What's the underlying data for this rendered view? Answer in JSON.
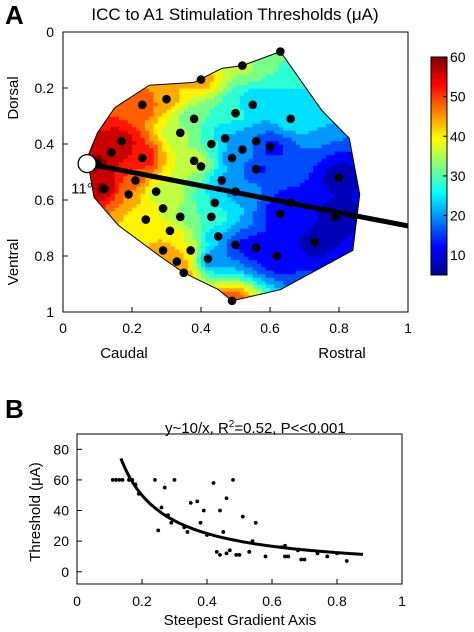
{
  "panel_labels": [
    "A",
    "B"
  ],
  "chart_data": [
    {
      "type": "heatmap",
      "title": "ICC to A1 Stimulation Thresholds (μA)",
      "xlim": [
        0,
        1
      ],
      "ylim": [
        0,
        1
      ],
      "y_reversed": true,
      "x_ticks": [
        "0",
        "0.2",
        "0.4",
        "0.6",
        "0.8",
        "1"
      ],
      "y_ticks": [
        "0",
        "0.2",
        "0.4",
        "0.6",
        "0.8",
        "1"
      ],
      "x_side_labels": [
        "Caudal",
        "Rostral"
      ],
      "y_side_labels": [
        "Dorsal",
        "Ventral"
      ],
      "colormap": "jet",
      "colorbar": {
        "range": [
          5,
          60
        ],
        "ticks": [
          "10",
          "20",
          "30",
          "40",
          "50",
          "60"
        ]
      },
      "grid": false,
      "gradient_axis": {
        "angle_label": "11°",
        "angle_deg": 11,
        "origin": [
          0.07,
          0.47
        ]
      },
      "boundary": [
        [
          0.07,
          0.45
        ],
        [
          0.1,
          0.36
        ],
        [
          0.15,
          0.27
        ],
        [
          0.25,
          0.19
        ],
        [
          0.38,
          0.18
        ],
        [
          0.46,
          0.13
        ],
        [
          0.52,
          0.12
        ],
        [
          0.63,
          0.07
        ],
        [
          0.75,
          0.28
        ],
        [
          0.83,
          0.38
        ],
        [
          0.86,
          0.58
        ],
        [
          0.84,
          0.78
        ],
        [
          0.63,
          0.92
        ],
        [
          0.49,
          0.96
        ],
        [
          0.45,
          0.92
        ],
        [
          0.35,
          0.86
        ],
        [
          0.28,
          0.8
        ],
        [
          0.16,
          0.69
        ],
        [
          0.09,
          0.59
        ]
      ],
      "points": [
        [
          0.14,
          0.43,
          58
        ],
        [
          0.17,
          0.39,
          57
        ],
        [
          0.23,
          0.45,
          55
        ],
        [
          0.21,
          0.53,
          50
        ],
        [
          0.19,
          0.58,
          45
        ],
        [
          0.27,
          0.57,
          35
        ],
        [
          0.29,
          0.63,
          38
        ],
        [
          0.24,
          0.67,
          40
        ],
        [
          0.31,
          0.71,
          42
        ],
        [
          0.29,
          0.78,
          45
        ],
        [
          0.37,
          0.78,
          40
        ],
        [
          0.34,
          0.66,
          32
        ],
        [
          0.38,
          0.46,
          40
        ],
        [
          0.4,
          0.48,
          35
        ],
        [
          0.43,
          0.4,
          30
        ],
        [
          0.47,
          0.38,
          20
        ],
        [
          0.49,
          0.45,
          18
        ],
        [
          0.52,
          0.42,
          20
        ],
        [
          0.56,
          0.39,
          18
        ],
        [
          0.6,
          0.41,
          10
        ],
        [
          0.56,
          0.49,
          12
        ],
        [
          0.46,
          0.53,
          20
        ],
        [
          0.5,
          0.57,
          20
        ],
        [
          0.44,
          0.61,
          25
        ],
        [
          0.43,
          0.66,
          30
        ],
        [
          0.45,
          0.73,
          22
        ],
        [
          0.42,
          0.81,
          15
        ],
        [
          0.5,
          0.76,
          12
        ],
        [
          0.56,
          0.77,
          10
        ],
        [
          0.62,
          0.8,
          10
        ],
        [
          0.73,
          0.75,
          8
        ],
        [
          0.79,
          0.66,
          7
        ],
        [
          0.8,
          0.52,
          8
        ],
        [
          0.63,
          0.65,
          10
        ],
        [
          0.66,
          0.61,
          12
        ],
        [
          0.38,
          0.31,
          30
        ],
        [
          0.3,
          0.24,
          45
        ],
        [
          0.23,
          0.26,
          50
        ],
        [
          0.4,
          0.17,
          45
        ],
        [
          0.52,
          0.12,
          35
        ],
        [
          0.63,
          0.07,
          30
        ],
        [
          0.66,
          0.31,
          25
        ],
        [
          0.5,
          0.29,
          28
        ],
        [
          0.55,
          0.26,
          22
        ],
        [
          0.12,
          0.56,
          60
        ],
        [
          0.34,
          0.36,
          35
        ],
        [
          0.49,
          0.96,
          50
        ],
        [
          0.33,
          0.82,
          48
        ],
        [
          0.35,
          0.86,
          45
        ],
        [
          0.1,
          0.47,
          60
        ]
      ]
    },
    {
      "type": "scatter",
      "xlabel": "Steepest Gradient Axis",
      "ylabel": "Threshold (μA)",
      "xlim": [
        0,
        1
      ],
      "ylim": [
        -8,
        90
      ],
      "x_ticks": [
        "0",
        "0.2",
        "0.4",
        "0.6",
        "0.8",
        "1"
      ],
      "y_ticks": [
        "0",
        "20",
        "40",
        "60",
        "80"
      ],
      "annotation": {
        "main": "y~10/x, R",
        "sup": "2",
        "rest": "=0.52, P<<0.001"
      },
      "fit": {
        "formula": "y=10/x",
        "x_range": [
          0.135,
          0.88
        ]
      },
      "points": [
        [
          0.11,
          60
        ],
        [
          0.12,
          60
        ],
        [
          0.13,
          60
        ],
        [
          0.14,
          60
        ],
        [
          0.16,
          60
        ],
        [
          0.17,
          60
        ],
        [
          0.18,
          57
        ],
        [
          0.19,
          51
        ],
        [
          0.24,
          60
        ],
        [
          0.26,
          42
        ],
        [
          0.25,
          27
        ],
        [
          0.27,
          55
        ],
        [
          0.28,
          37
        ],
        [
          0.29,
          32
        ],
        [
          0.3,
          60
        ],
        [
          0.33,
          29
        ],
        [
          0.34,
          26
        ],
        [
          0.35,
          45
        ],
        [
          0.37,
          46
        ],
        [
          0.38,
          32
        ],
        [
          0.39,
          40
        ],
        [
          0.4,
          24
        ],
        [
          0.42,
          58
        ],
        [
          0.44,
          40
        ],
        [
          0.45,
          26
        ],
        [
          0.43,
          13
        ],
        [
          0.44,
          11
        ],
        [
          0.46,
          12
        ],
        [
          0.47,
          14
        ],
        [
          0.48,
          60
        ],
        [
          0.49,
          11
        ],
        [
          0.5,
          11
        ],
        [
          0.51,
          36
        ],
        [
          0.53,
          13
        ],
        [
          0.54,
          20
        ],
        [
          0.55,
          32
        ],
        [
          0.53,
          13
        ],
        [
          0.58,
          10
        ],
        [
          0.63,
          16
        ],
        [
          0.64,
          17
        ],
        [
          0.65,
          10
        ],
        [
          0.68,
          14
        ],
        [
          0.69,
          8
        ],
        [
          0.7,
          8
        ],
        [
          0.74,
          12
        ],
        [
          0.77,
          10
        ],
        [
          0.8,
          12
        ],
        [
          0.83,
          7
        ],
        [
          0.64,
          10
        ],
        [
          0.46,
          48
        ]
      ]
    }
  ]
}
